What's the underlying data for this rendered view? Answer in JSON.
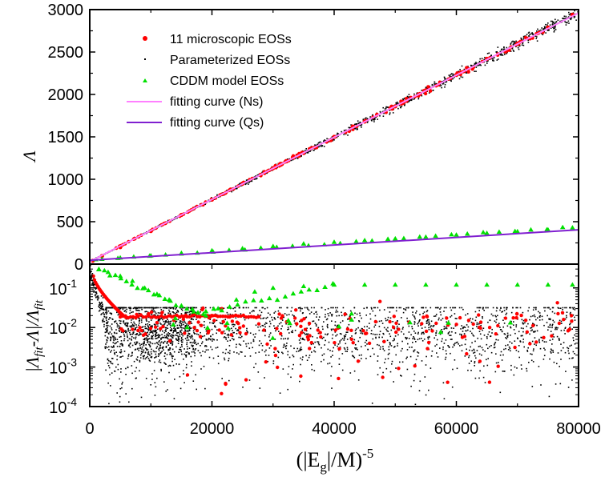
{
  "chart_data": [
    {
      "type": "scatter",
      "title": "",
      "xlabel": "",
      "ylabel": "Λ",
      "xlim": [
        0,
        80000
      ],
      "ylim": [
        0,
        3000
      ],
      "yticks": [
        0,
        500,
        1000,
        1500,
        2000,
        2500,
        3000
      ],
      "grid": false,
      "legend_position": "top-left",
      "legend": [
        {
          "name": "11 microscopic EOSs",
          "marker": "circle",
          "color": "#ff0000"
        },
        {
          "name": "Parameterized EOSs",
          "marker": "dot",
          "color": "#000000"
        },
        {
          "name": "CDDM model EOSs",
          "marker": "triangle",
          "color": "#00e000"
        },
        {
          "name": "fitting curve (Ns)",
          "marker": "line",
          "color": "#ff80ff"
        },
        {
          "name": "fitting curve (Qs)",
          "marker": "line",
          "color": "#8020d0"
        }
      ],
      "fit_lines": [
        {
          "name": "fitting curve (Ns)",
          "x": [
            0,
            80000
          ],
          "y": [
            30,
            2960
          ]
        },
        {
          "name": "fitting curve (Qs)",
          "x": [
            0,
            80000
          ],
          "y": [
            45,
            405
          ]
        }
      ],
      "series": [
        {
          "name": "11 microscopic EOSs",
          "x": [
            500,
            2000,
            5000,
            10000,
            15000,
            20000,
            25000,
            30000,
            35000,
            40000,
            45000,
            50000,
            55000,
            60000,
            65000,
            70000,
            75000,
            79000
          ],
          "y": [
            40,
            95,
            200,
            390,
            580,
            760,
            950,
            1130,
            1310,
            1500,
            1680,
            1860,
            2050,
            2230,
            2420,
            2600,
            2790,
            2940
          ]
        },
        {
          "name": "CDDM model EOSs",
          "x": [
            1000,
            5000,
            10000,
            15000,
            20000,
            25000,
            30000,
            35000,
            40000,
            45000,
            50000,
            55000,
            60000,
            65000,
            70000,
            75000,
            79000
          ],
          "y": [
            55,
            75,
            100,
            130,
            160,
            185,
            210,
            240,
            260,
            280,
            300,
            320,
            345,
            365,
            385,
            405,
            430
          ]
        },
        {
          "name": "Parameterized EOSs",
          "x_range": [
            500,
            80000
          ],
          "y_relation": "near fitting curve (Ns)"
        }
      ]
    },
    {
      "type": "scatter",
      "title": "",
      "xlabel": "(|Eg|/M)^-5",
      "ylabel": "|Λfit-Λ|/Λfit",
      "xlim": [
        0,
        80000
      ],
      "ylim": [
        0.0001,
        0.4
      ],
      "yscale": "log",
      "xticks": [
        0,
        20000,
        40000,
        60000,
        80000
      ],
      "yticks": [
        0.0001,
        0.001,
        0.01,
        0.1
      ],
      "grid": false,
      "series": [
        {
          "name": "11 microscopic EOSs",
          "x_range": [
            1000,
            80000
          ],
          "y_range": [
            0.0002,
            0.3
          ]
        },
        {
          "name": "CDDM model EOSs",
          "x": [
            1500,
            3000,
            5000,
            7000,
            9000,
            11000,
            13000,
            15000,
            17000,
            19000,
            21000,
            24000,
            27000,
            30000,
            35000,
            40000,
            45000,
            50000,
            55000,
            60000,
            65000,
            70000,
            75000,
            79000
          ],
          "y": [
            0.3,
            0.25,
            0.2,
            0.15,
            0.1,
            0.07,
            0.05,
            0.035,
            0.025,
            0.02,
            0.03,
            0.05,
            0.08,
            0.1,
            0.11,
            0.12,
            0.12,
            0.12,
            0.12,
            0.12,
            0.12,
            0.12,
            0.12,
            0.12
          ]
        },
        {
          "name": "Parameterized EOSs",
          "x_range": [
            500,
            80000
          ],
          "y_range": [
            0.0002,
            0.03
          ]
        }
      ]
    }
  ],
  "x_tick_labels": [
    "0",
    "20000",
    "40000",
    "60000",
    "80000"
  ],
  "top_y_tick_labels": [
    "0",
    "500",
    "1000",
    "1500",
    "2000",
    "2500",
    "3000"
  ],
  "bottom_y_tick_labels": [
    {
      "base": "10",
      "exp": "-4"
    },
    {
      "base": "10",
      "exp": "-3"
    },
    {
      "base": "10",
      "exp": "-2"
    },
    {
      "base": "10",
      "exp": "-1"
    }
  ],
  "labels": {
    "top_ylabel": "Λ",
    "bottom_ylabel_open": "|Λ",
    "bottom_ylabel_sub1": "fit",
    "bottom_ylabel_mid": "-Λ|/Λ",
    "bottom_ylabel_sub2": "fit",
    "xlabel_open": "(|E",
    "xlabel_sub": "g",
    "xlabel_mid": "|/M)",
    "xlabel_sup": "-5"
  },
  "colors": {
    "microscopic": "#ff0000",
    "parameterized": "#000000",
    "cddm": "#00e000",
    "fit_ns": "#ff80ff",
    "fit_qs": "#8020d0",
    "axis": "#000000"
  }
}
